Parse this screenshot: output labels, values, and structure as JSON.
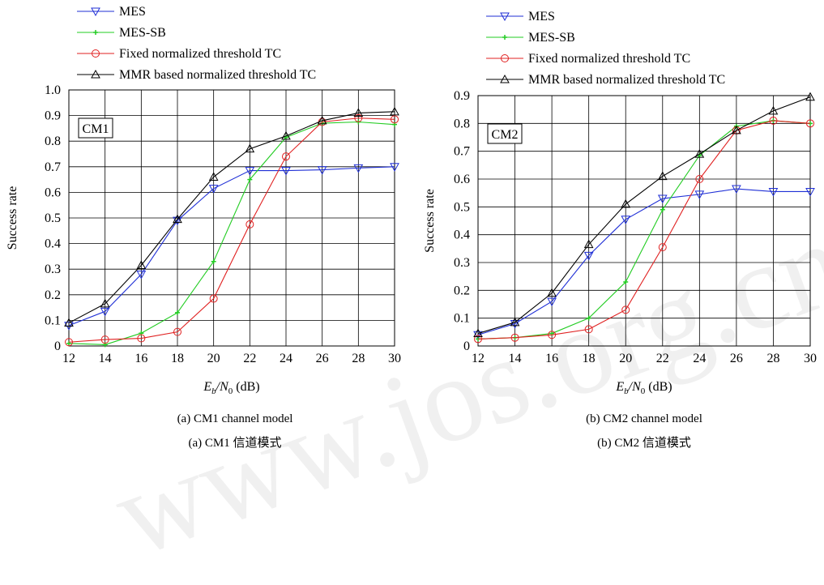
{
  "watermark": "www.jos.org.cn",
  "chart_data": [
    {
      "type": "line",
      "xlabel": "Eb/N0 (dB)",
      "ylabel": "Success rate",
      "box_label": "CM1",
      "caption_en": "(a) CM1 channel model",
      "caption_cn": "(a) CM1 信道模式",
      "x": [
        12,
        14,
        16,
        18,
        20,
        22,
        24,
        26,
        28,
        30
      ],
      "xlim": [
        12,
        30
      ],
      "ylim": [
        0,
        1.0
      ],
      "ytick_labels": [
        "0",
        "0.1",
        "0.2",
        "0.3",
        "0.4",
        "0.5",
        "0.6",
        "0.7",
        "0.8",
        "0.9",
        "1.0"
      ],
      "xtick_labels": [
        "12",
        "14",
        "16",
        "18",
        "20",
        "22",
        "24",
        "26",
        "28",
        "30"
      ],
      "grid": true,
      "series": [
        {
          "name": "MES",
          "color": "#1f2fd6",
          "marker": "triangle-down",
          "values": [
            0.08,
            0.135,
            0.28,
            0.49,
            0.615,
            0.685,
            0.685,
            0.688,
            0.695,
            0.7
          ]
        },
        {
          "name": "MES-SB",
          "color": "#22cc22",
          "marker": "plus",
          "values": [
            0.01,
            0.005,
            0.05,
            0.13,
            0.33,
            0.65,
            0.815,
            0.87,
            0.875,
            0.865
          ]
        },
        {
          "name": "Fixed normalized threshold TC",
          "color": "#e02020",
          "marker": "circle",
          "values": [
            0.015,
            0.025,
            0.03,
            0.055,
            0.185,
            0.475,
            0.74,
            0.875,
            0.89,
            0.885
          ]
        },
        {
          "name": "MMR based normalized threshold TC",
          "color": "#000000",
          "marker": "triangle-up",
          "values": [
            0.09,
            0.165,
            0.315,
            0.495,
            0.66,
            0.77,
            0.82,
            0.88,
            0.91,
            0.915
          ]
        }
      ]
    },
    {
      "type": "line",
      "xlabel": "Eb/N0 (dB)",
      "ylabel": "Success rate",
      "box_label": "CM2",
      "caption_en": "(b) CM2 channel model",
      "caption_cn": "(b) CM2 信道模式",
      "x": [
        12,
        14,
        16,
        18,
        20,
        22,
        24,
        26,
        28,
        30
      ],
      "xlim": [
        12,
        30
      ],
      "ylim": [
        0,
        0.9
      ],
      "ytick_labels": [
        "0",
        "0.1",
        "0.2",
        "0.3",
        "0.4",
        "0.5",
        "0.6",
        "0.7",
        "0.8",
        "0.9"
      ],
      "xtick_labels": [
        "12",
        "14",
        "16",
        "18",
        "20",
        "22",
        "24",
        "26",
        "28",
        "30"
      ],
      "grid": true,
      "series": [
        {
          "name": "MES",
          "color": "#1f2fd6",
          "marker": "triangle-down",
          "values": [
            0.04,
            0.08,
            0.16,
            0.325,
            0.455,
            0.53,
            0.545,
            0.565,
            0.555,
            0.555
          ]
        },
        {
          "name": "MES-SB",
          "color": "#22cc22",
          "marker": "plus",
          "values": [
            0.025,
            0.03,
            0.045,
            0.1,
            0.23,
            0.49,
            0.685,
            0.79,
            0.81,
            0.8
          ]
        },
        {
          "name": "Fixed normalized threshold TC",
          "color": "#e02020",
          "marker": "circle",
          "values": [
            0.025,
            0.03,
            0.04,
            0.06,
            0.13,
            0.355,
            0.6,
            0.775,
            0.81,
            0.8
          ]
        },
        {
          "name": "MMR based normalized threshold TC",
          "color": "#000000",
          "marker": "triangle-up",
          "values": [
            0.045,
            0.085,
            0.19,
            0.365,
            0.51,
            0.61,
            0.69,
            0.775,
            0.845,
            0.895
          ]
        }
      ]
    }
  ]
}
